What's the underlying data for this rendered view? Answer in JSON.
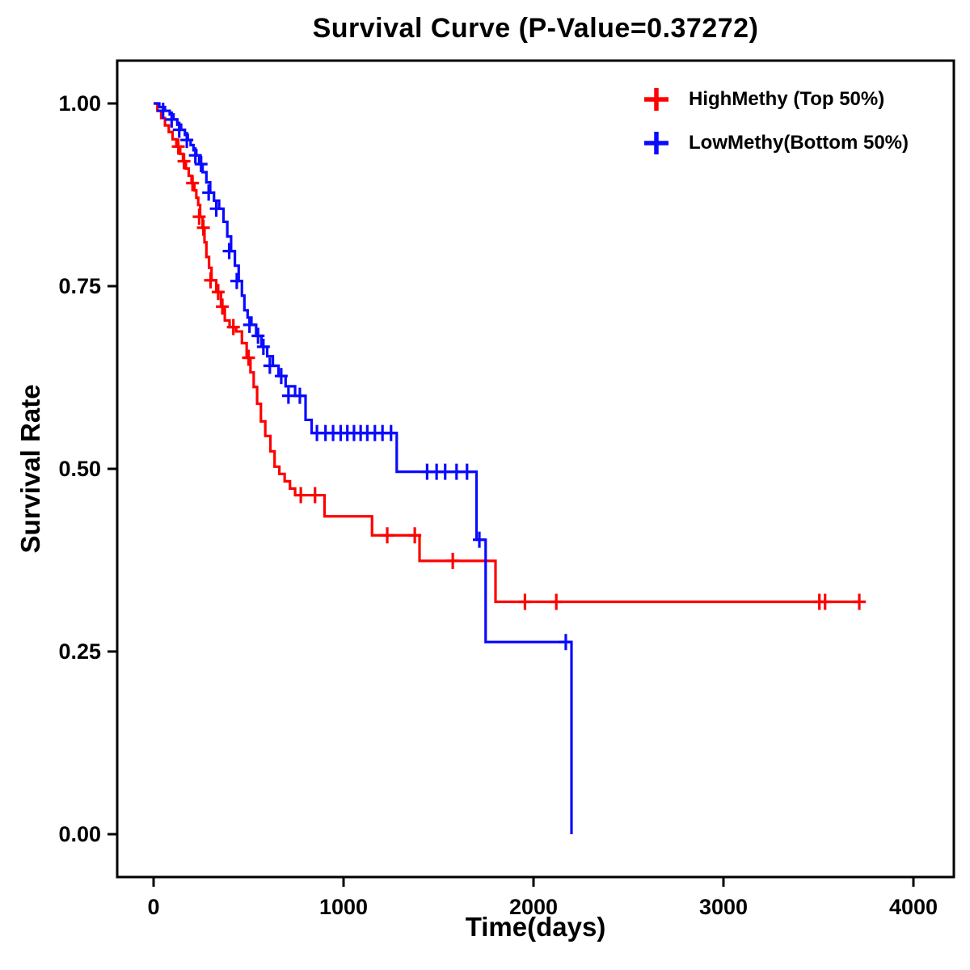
{
  "page": {
    "background": "#ffffff"
  },
  "legend": {
    "items": [
      {
        "label": "HighMethy (Top 50%)",
        "color": "#ff0000"
      },
      {
        "label": "LowMethy(Bottom 50%)",
        "color": "#0a0aff"
      }
    ]
  },
  "chart_data": {
    "type": "line",
    "subtype": "kaplan-meier-step",
    "title": "Survival Curve (P-Value=0.37272)",
    "p_value": "0.37272",
    "xlabel": "Time(days)",
    "ylabel": "Survival Rate",
    "xlim": [
      0,
      4000
    ],
    "ylim": [
      0,
      1
    ],
    "x_ticks": [
      0,
      1000,
      2000,
      3000,
      4000
    ],
    "x_tick_labels": [
      "0",
      "1000",
      "2000",
      "3000",
      "4000"
    ],
    "y_ticks": [
      0,
      0.25,
      0.5,
      0.75,
      1
    ],
    "y_tick_labels": [
      "0.00",
      "0.25",
      "0.50",
      "0.75",
      "1.00"
    ],
    "grid": false,
    "legend_position": "top-right",
    "series": [
      {
        "name": "HighMethy (Top 50%)",
        "color": "#ff0000",
        "steps": [
          [
            0,
            1.0
          ],
          [
            20,
            0.99
          ],
          [
            40,
            0.98
          ],
          [
            60,
            0.97
          ],
          [
            80,
            0.961
          ],
          [
            100,
            0.951
          ],
          [
            120,
            0.941
          ],
          [
            140,
            0.931
          ],
          [
            155,
            0.921
          ],
          [
            170,
            0.911
          ],
          [
            185,
            0.901
          ],
          [
            200,
            0.891
          ],
          [
            215,
            0.881
          ],
          [
            225,
            0.871
          ],
          [
            235,
            0.861
          ],
          [
            245,
            0.845
          ],
          [
            258,
            0.83
          ],
          [
            268,
            0.81
          ],
          [
            278,
            0.79
          ],
          [
            292,
            0.775
          ],
          [
            305,
            0.758
          ],
          [
            330,
            0.742
          ],
          [
            355,
            0.722
          ],
          [
            375,
            0.703
          ],
          [
            400,
            0.694
          ],
          [
            435,
            0.688
          ],
          [
            465,
            0.672
          ],
          [
            490,
            0.652
          ],
          [
            510,
            0.632
          ],
          [
            527,
            0.612
          ],
          [
            545,
            0.589
          ],
          [
            565,
            0.565
          ],
          [
            588,
            0.545
          ],
          [
            615,
            0.524
          ],
          [
            637,
            0.503
          ],
          [
            662,
            0.493
          ],
          [
            690,
            0.483
          ],
          [
            718,
            0.473
          ],
          [
            745,
            0.464
          ],
          [
            900,
            0.435
          ],
          [
            1150,
            0.409
          ],
          [
            1400,
            0.374
          ],
          [
            1800,
            0.318
          ],
          [
            3720,
            0.318
          ]
        ],
        "censors": [
          [
            130,
            0.941
          ],
          [
            160,
            0.921
          ],
          [
            205,
            0.891
          ],
          [
            240,
            0.845
          ],
          [
            262,
            0.83
          ],
          [
            300,
            0.758
          ],
          [
            340,
            0.742
          ],
          [
            362,
            0.722
          ],
          [
            420,
            0.694
          ],
          [
            500,
            0.652
          ],
          [
            775,
            0.464
          ],
          [
            850,
            0.464
          ],
          [
            1230,
            0.409
          ],
          [
            1375,
            0.409
          ],
          [
            1575,
            0.374
          ],
          [
            1955,
            0.318
          ],
          [
            2120,
            0.318
          ],
          [
            3505,
            0.318
          ],
          [
            3535,
            0.318
          ],
          [
            3715,
            0.318
          ]
        ]
      },
      {
        "name": "LowMethy(Bottom 50%)",
        "color": "#0a0aff",
        "steps": [
          [
            0,
            1.0
          ],
          [
            30,
            0.995
          ],
          [
            60,
            0.99
          ],
          [
            85,
            0.985
          ],
          [
            105,
            0.978
          ],
          [
            125,
            0.971
          ],
          [
            145,
            0.964
          ],
          [
            165,
            0.957
          ],
          [
            180,
            0.95
          ],
          [
            195,
            0.943
          ],
          [
            210,
            0.936
          ],
          [
            225,
            0.929
          ],
          [
            240,
            0.917
          ],
          [
            258,
            0.906
          ],
          [
            278,
            0.892
          ],
          [
            298,
            0.878
          ],
          [
            318,
            0.867
          ],
          [
            345,
            0.856
          ],
          [
            368,
            0.838
          ],
          [
            388,
            0.818
          ],
          [
            408,
            0.798
          ],
          [
            428,
            0.778
          ],
          [
            448,
            0.757
          ],
          [
            465,
            0.737
          ],
          [
            478,
            0.717
          ],
          [
            495,
            0.707
          ],
          [
            515,
            0.697
          ],
          [
            540,
            0.682
          ],
          [
            568,
            0.667
          ],
          [
            598,
            0.654
          ],
          [
            628,
            0.641
          ],
          [
            658,
            0.627
          ],
          [
            695,
            0.613
          ],
          [
            745,
            0.6
          ],
          [
            800,
            0.567
          ],
          [
            832,
            0.549
          ],
          [
            1280,
            0.496
          ],
          [
            1700,
            0.403
          ],
          [
            1748,
            0.263
          ],
          [
            2200,
            0.0
          ]
        ],
        "censors": [
          [
            50,
            0.99
          ],
          [
            95,
            0.978
          ],
          [
            135,
            0.964
          ],
          [
            175,
            0.95
          ],
          [
            220,
            0.929
          ],
          [
            250,
            0.917
          ],
          [
            290,
            0.878
          ],
          [
            330,
            0.856
          ],
          [
            398,
            0.798
          ],
          [
            438,
            0.757
          ],
          [
            505,
            0.697
          ],
          [
            550,
            0.682
          ],
          [
            578,
            0.667
          ],
          [
            612,
            0.641
          ],
          [
            672,
            0.627
          ],
          [
            710,
            0.6
          ],
          [
            770,
            0.6
          ],
          [
            860,
            0.549
          ],
          [
            905,
            0.549
          ],
          [
            945,
            0.549
          ],
          [
            985,
            0.549
          ],
          [
            1020,
            0.549
          ],
          [
            1055,
            0.549
          ],
          [
            1090,
            0.549
          ],
          [
            1125,
            0.549
          ],
          [
            1165,
            0.549
          ],
          [
            1205,
            0.549
          ],
          [
            1250,
            0.549
          ],
          [
            1440,
            0.496
          ],
          [
            1490,
            0.496
          ],
          [
            1535,
            0.496
          ],
          [
            1595,
            0.496
          ],
          [
            1650,
            0.496
          ],
          [
            1715,
            0.403
          ],
          [
            2170,
            0.263
          ]
        ]
      }
    ]
  }
}
